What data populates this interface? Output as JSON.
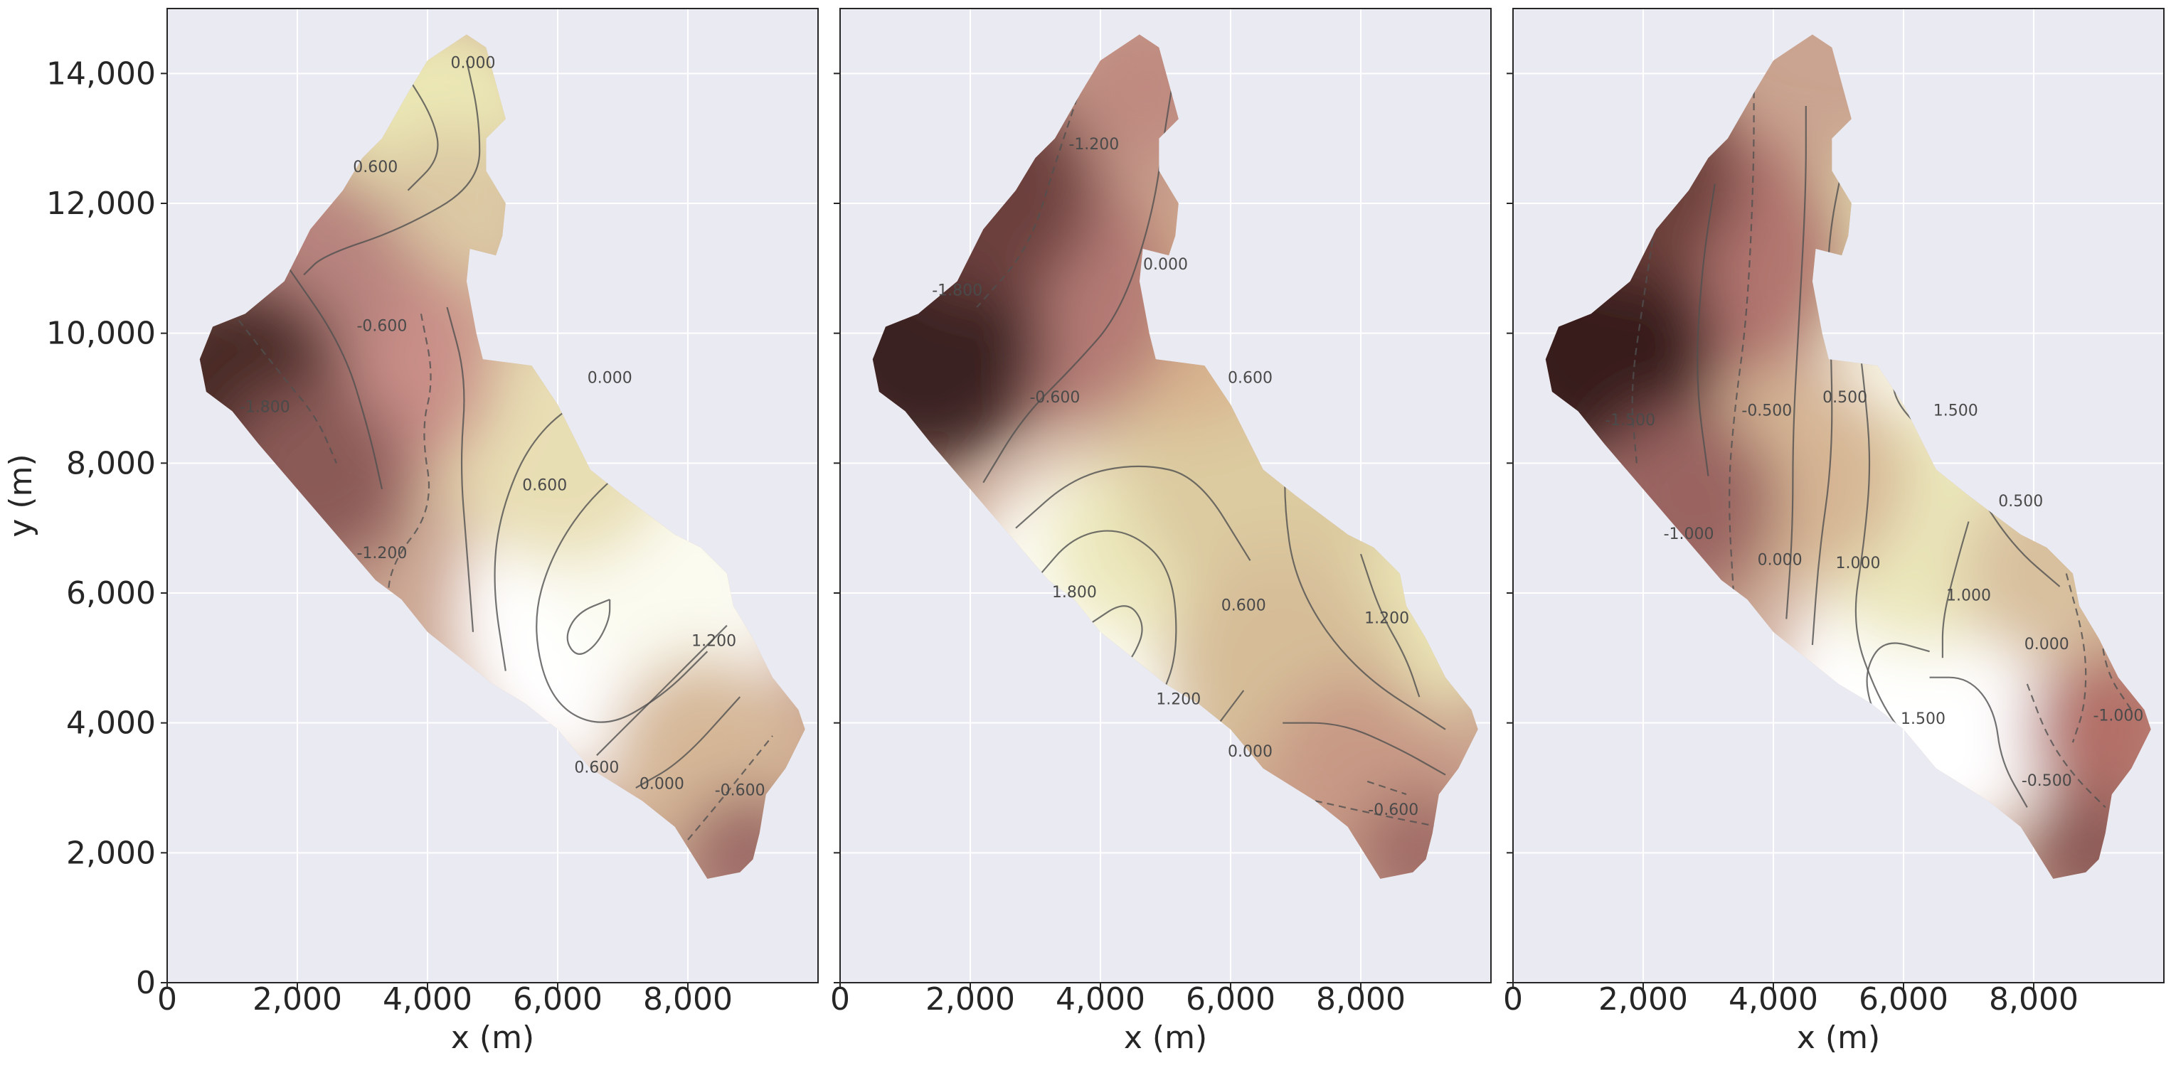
{
  "chart_data": [
    {
      "type": "heatmap",
      "subtype": "filled field with contour lines",
      "xlabel": "x (m)",
      "ylabel": "y (m)",
      "xlim": [
        0,
        10000
      ],
      "ylim": [
        0,
        15000
      ],
      "x_ticks": [
        0,
        2000,
        4000,
        6000,
        8000
      ],
      "y_ticks": [
        0,
        2000,
        4000,
        6000,
        8000,
        10000,
        12000,
        14000
      ],
      "x_tick_labels": [
        "0",
        "2,000",
        "4,000",
        "6,000",
        "8,000"
      ],
      "y_tick_labels": [
        "0",
        "2,000",
        "4,000",
        "6,000",
        "8,000",
        "10,000",
        "12,000",
        "14,000"
      ],
      "grid": true,
      "colormap": "pink",
      "contour_labels": [
        {
          "text": "0.000",
          "x": 4700,
          "y": 14150
        },
        {
          "text": "0.600",
          "x": 3200,
          "y": 12550
        },
        {
          "text": "-0.600",
          "x": 3300,
          "y": 10100
        },
        {
          "text": "-1.800",
          "x": 1500,
          "y": 8850
        },
        {
          "text": "0.000",
          "x": 6800,
          "y": 9300
        },
        {
          "text": "0.600",
          "x": 5800,
          "y": 7650
        },
        {
          "text": "-1.200",
          "x": 3300,
          "y": 6600
        },
        {
          "text": "1.200",
          "x": 8400,
          "y": 5250
        },
        {
          "text": "0.600",
          "x": 6600,
          "y": 3300
        },
        {
          "text": "0.000",
          "x": 7600,
          "y": 3050
        },
        {
          "text": "-0.600",
          "x": 8800,
          "y": 2950
        }
      ]
    },
    {
      "type": "heatmap",
      "subtype": "filled field with contour lines",
      "xlabel": "x (m)",
      "xlim": [
        0,
        10000
      ],
      "ylim": [
        0,
        15000
      ],
      "x_ticks": [
        0,
        2000,
        4000,
        6000,
        8000
      ],
      "x_tick_labels": [
        "0",
        "2,000",
        "4,000",
        "6,000",
        "8,000"
      ],
      "grid": true,
      "colormap": "pink",
      "contour_labels": [
        {
          "text": "-1.200",
          "x": 3900,
          "y": 12900
        },
        {
          "text": "0.000",
          "x": 5000,
          "y": 11050
        },
        {
          "text": "-1.800",
          "x": 1800,
          "y": 10650
        },
        {
          "text": "0.600",
          "x": 6300,
          "y": 9300
        },
        {
          "text": "-0.600",
          "x": 3300,
          "y": 9000
        },
        {
          "text": "1.800",
          "x": 3600,
          "y": 6000
        },
        {
          "text": "0.600",
          "x": 6200,
          "y": 5800
        },
        {
          "text": "1.200",
          "x": 8400,
          "y": 5600
        },
        {
          "text": "1.200",
          "x": 5200,
          "y": 4350
        },
        {
          "text": "0.000",
          "x": 6300,
          "y": 3550
        },
        {
          "text": "-0.600",
          "x": 8500,
          "y": 2650
        }
      ]
    },
    {
      "type": "heatmap",
      "subtype": "filled field with contour lines",
      "xlabel": "x (m)",
      "xlim": [
        0,
        10000
      ],
      "ylim": [
        0,
        15000
      ],
      "x_ticks": [
        0,
        2000,
        4000,
        6000,
        8000
      ],
      "x_tick_labels": [
        "0",
        "2,000",
        "4,000",
        "6,000",
        "8,000"
      ],
      "grid": true,
      "colormap": "pink",
      "contour_labels": [
        {
          "text": "-1.500",
          "x": 1800,
          "y": 8650
        },
        {
          "text": "-0.500",
          "x": 3900,
          "y": 8800
        },
        {
          "text": "0.500",
          "x": 5100,
          "y": 9000
        },
        {
          "text": "1.500",
          "x": 6800,
          "y": 8800
        },
        {
          "text": "0.500",
          "x": 7800,
          "y": 7400
        },
        {
          "text": "-1.000",
          "x": 2700,
          "y": 6900
        },
        {
          "text": "0.000",
          "x": 4100,
          "y": 6500
        },
        {
          "text": "1.000",
          "x": 5300,
          "y": 6450
        },
        {
          "text": "1.000",
          "x": 7000,
          "y": 5950
        },
        {
          "text": "0.000",
          "x": 8200,
          "y": 5200
        },
        {
          "text": "1.500",
          "x": 6300,
          "y": 4050
        },
        {
          "text": "-1.000",
          "x": 9300,
          "y": 4100
        },
        {
          "text": "-0.500",
          "x": 8200,
          "y": 3100
        }
      ]
    }
  ]
}
